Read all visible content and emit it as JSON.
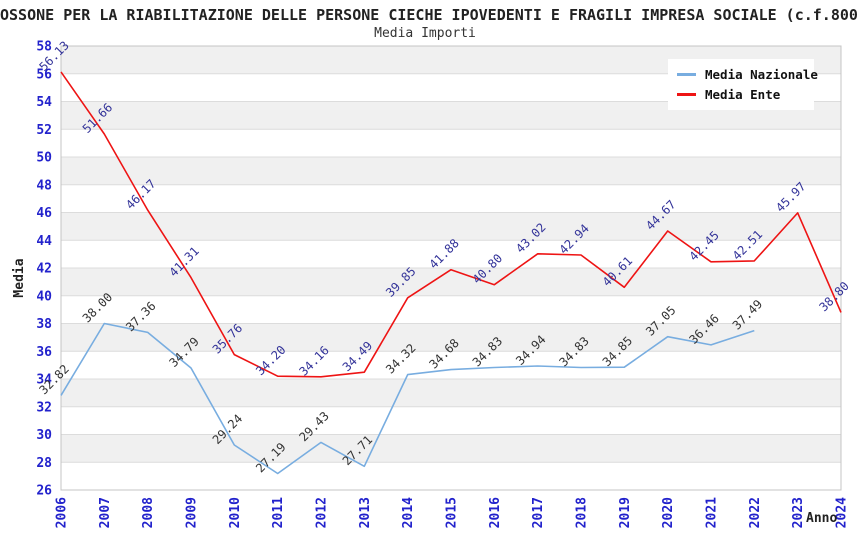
{
  "title": "OSSONE PER LA RIABILITAZIONE DELLE PERSONE CIECHE IPOVEDENTI E FRAGILI IMPRESA SOCIALE (c.f.800",
  "subtitle": "Media Importi",
  "axes": {
    "y_label": "Media",
    "x_label": "Anno"
  },
  "colors": {
    "tick_label": "#2222CC",
    "band_gray": "#F0F0F0",
    "band_white": "#FFFFFF",
    "gridline": "#DCDCDC",
    "plot_border": "#C4C4C4",
    "line_nazionale": "#78ADE0",
    "line_ente": "#EE1414",
    "label_nazionale": "#333333",
    "label_ente": "#333399"
  },
  "chart_data": {
    "type": "line",
    "x": [
      2006,
      2007,
      2008,
      2009,
      2010,
      2011,
      2012,
      2013,
      2014,
      2015,
      2016,
      2017,
      2018,
      2019,
      2020,
      2021,
      2022,
      2023,
      2024
    ],
    "series": [
      {
        "name": "Media Nazionale",
        "color": "#78ADE0",
        "label_color": "#333333",
        "values": [
          32.82,
          38.0,
          37.36,
          34.79,
          29.24,
          27.19,
          29.43,
          27.71,
          34.32,
          34.68,
          34.83,
          34.94,
          34.83,
          34.85,
          37.05,
          36.46,
          37.49,
          null,
          null
        ]
      },
      {
        "name": "Media Ente",
        "color": "#EE1414",
        "label_color": "#333399",
        "values": [
          56.13,
          51.66,
          46.17,
          41.31,
          35.76,
          34.2,
          34.16,
          34.49,
          39.85,
          41.88,
          40.8,
          43.02,
          42.94,
          40.61,
          44.67,
          42.45,
          42.51,
          45.97,
          38.8
        ]
      }
    ],
    "ylim": [
      26,
      58
    ],
    "ytick_step": 2,
    "grid": "alternating-bands",
    "legend_position": "top-right"
  }
}
